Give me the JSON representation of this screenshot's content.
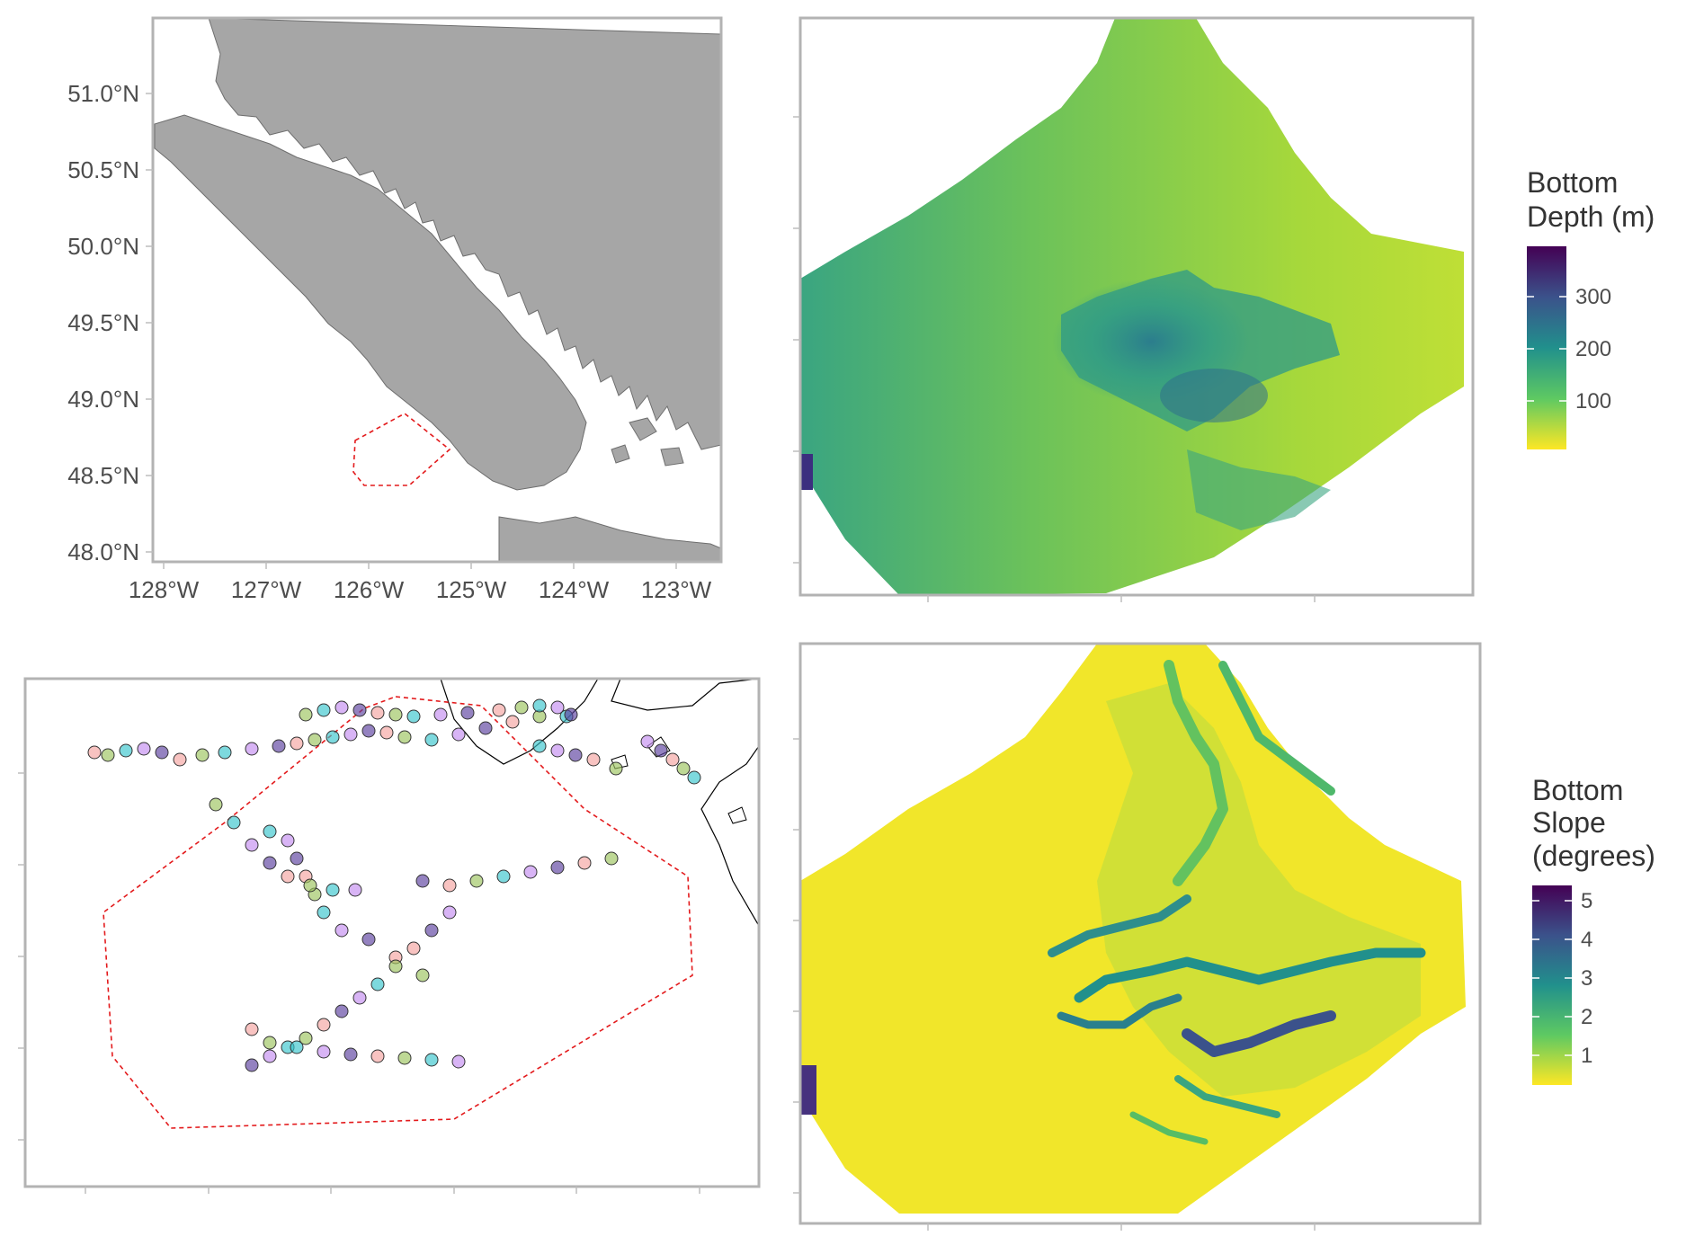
{
  "overview_map": {
    "lat_labels": [
      "51.0°N",
      "50.5°N",
      "50.0°N",
      "49.5°N",
      "49.0°N",
      "48.5°N",
      "48.0°N"
    ],
    "lon_labels": [
      "128°W",
      "127°W",
      "126°W",
      "125°W",
      "124°W",
      "123°W"
    ],
    "land_color": "#a6a6a6",
    "study_area_outline_color": "#e31a1c"
  },
  "tracks_map": {
    "point_colors": [
      "#f4a3a0",
      "#9bc35c",
      "#37c5cc",
      "#c38cf0",
      "#5b3f9e"
    ],
    "coastline_color": "#000000",
    "study_area_outline_color": "#e31a1c"
  },
  "depth_raster": {
    "legend_title_line1": "Bottom",
    "legend_title_line2": "Depth (m)",
    "legend_ticks": [
      "300",
      "200",
      "100"
    ],
    "colormap": [
      "#440154",
      "#3b528b",
      "#21908c",
      "#5ec962",
      "#fde725"
    ]
  },
  "slope_raster": {
    "legend_title_line1": "Bottom",
    "legend_title_line2": "Slope",
    "legend_title_line3": "(degrees)",
    "legend_ticks": [
      "5",
      "4",
      "3",
      "2",
      "1"
    ],
    "colormap": [
      "#440154",
      "#3b528b",
      "#21908c",
      "#5ec962",
      "#fde725"
    ]
  }
}
